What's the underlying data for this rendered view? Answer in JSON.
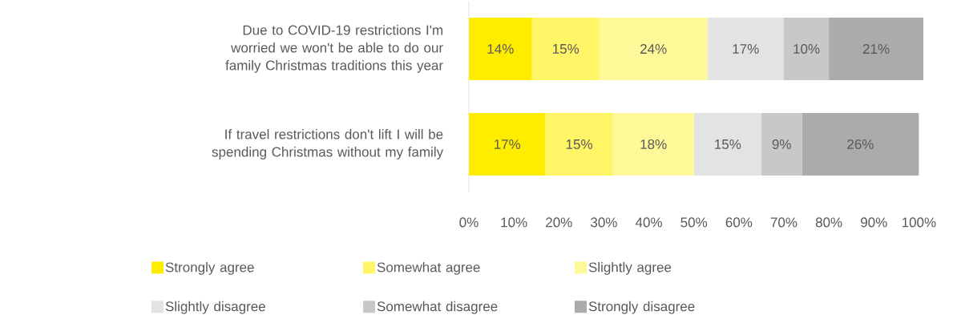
{
  "chart_data": {
    "type": "bar",
    "orientation": "horizontal",
    "stacked": true,
    "legend": "bottom",
    "categories": [
      "Due to COVID-19 restrictions I'm worried we won't be able to do our family Christmas traditions this year",
      "If travel restrictions don't lift I will be spending Christmas without my family"
    ],
    "series": [
      {
        "name": "Strongly agree",
        "color": "#ffed00",
        "values": [
          14,
          17
        ],
        "value_labels": [
          "14%",
          "17%"
        ]
      },
      {
        "name": "Somewhat agree",
        "color": "#fff566",
        "values": [
          15,
          15
        ],
        "value_labels": [
          "15%",
          "15%"
        ]
      },
      {
        "name": "Slightly agree",
        "color": "#fff899",
        "values": [
          24,
          18
        ],
        "value_labels": [
          "24%",
          "18%"
        ]
      },
      {
        "name": "Slightly disagree",
        "color": "#e3e3e3",
        "values": [
          17,
          15
        ],
        "value_labels": [
          "17%",
          "15%"
        ]
      },
      {
        "name": "Somewhat disagree",
        "color": "#c8c8c8",
        "values": [
          10,
          9
        ],
        "value_labels": [
          "10%",
          "9%"
        ]
      },
      {
        "name": "Strongly disagree",
        "color": "#ababab",
        "values": [
          21,
          26
        ],
        "value_labels": [
          "21%",
          "26%"
        ]
      }
    ],
    "xlim": [
      0,
      101
    ],
    "xticks": [
      {
        "value": 0,
        "label": "0%"
      },
      {
        "value": 10,
        "label": "10%"
      },
      {
        "value": 20,
        "label": "20%"
      },
      {
        "value": 30,
        "label": "30%"
      },
      {
        "value": 40,
        "label": "40%"
      },
      {
        "value": 50,
        "label": "50%"
      },
      {
        "value": 60,
        "label": "60%"
      },
      {
        "value": 70,
        "label": "70%"
      },
      {
        "value": 80,
        "label": "80%"
      },
      {
        "value": 90,
        "label": "90%"
      },
      {
        "value": 100,
        "label": "100%"
      }
    ]
  }
}
